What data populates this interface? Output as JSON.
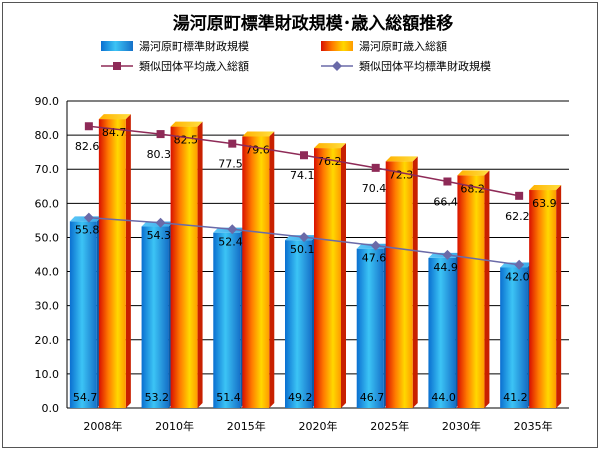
{
  "chart_data": {
    "type": "bar",
    "title": "湯河原町標準財政規模･歳入総額推移",
    "categories": [
      "2008年",
      "2010年",
      "2015年",
      "2020年",
      "2025年",
      "2030年",
      "2035年"
    ],
    "ylim": [
      0,
      90
    ],
    "yticks": [
      "0.0",
      "10.0",
      "20.0",
      "30.0",
      "40.0",
      "50.0",
      "60.0",
      "70.0",
      "80.0",
      "90.0"
    ],
    "grid": true,
    "legend_position": "top",
    "series": [
      {
        "name": "湯河原町標準財政規模",
        "kind": "bar",
        "color": "#1a9fe0",
        "values": [
          54.7,
          53.2,
          51.4,
          49.2,
          46.7,
          44.0,
          41.2
        ],
        "labels": [
          "54.7",
          "53.2",
          "51.4",
          "49.2",
          "46.7",
          "44.0",
          "41.2"
        ]
      },
      {
        "name": "湯河原町歳入総額",
        "kind": "bar",
        "color": "#ff7a00",
        "values": [
          84.7,
          82.5,
          79.6,
          76.2,
          72.3,
          68.2,
          63.9
        ],
        "labels": [
          "84.7",
          "82.5",
          "79.6",
          "76.2",
          "72.3",
          "68.2",
          "63.9"
        ]
      },
      {
        "name": "類似団体平均歳入総額",
        "kind": "line",
        "marker": "square",
        "color": "#8e2a57",
        "values": [
          82.6,
          80.3,
          77.5,
          74.1,
          70.4,
          66.4,
          62.2
        ],
        "labels": [
          "82.6",
          "80.3",
          "77.5",
          "74.1",
          "70.4",
          "66.4",
          "62.2"
        ]
      },
      {
        "name": "類似団体平均標準財政規模",
        "kind": "line",
        "marker": "diamond",
        "color": "#6a6aa8",
        "values": [
          55.8,
          54.3,
          52.4,
          50.1,
          47.6,
          44.9,
          42.0
        ],
        "labels": [
          "55.8",
          "54.3",
          "52.4",
          "50.1",
          "47.6",
          "44.9",
          "42.0"
        ]
      }
    ]
  }
}
